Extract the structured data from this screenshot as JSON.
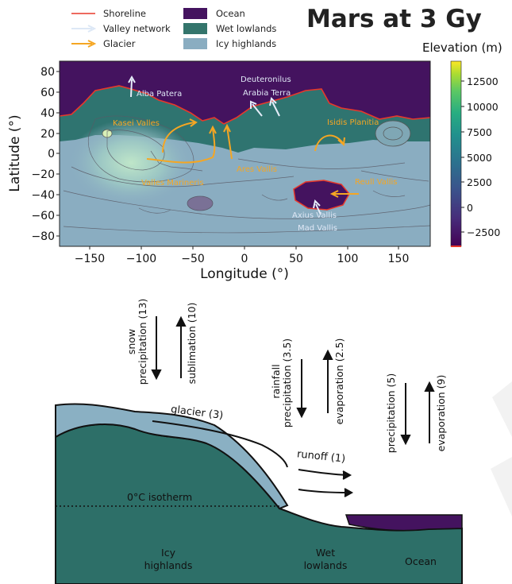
{
  "title": "Mars at 3 Gy",
  "legend": {
    "items": [
      {
        "label": "Shoreline",
        "kind": "line",
        "color": "#e8382a"
      },
      {
        "label": "Valley network",
        "kind": "arrow",
        "color": "#dde8f6"
      },
      {
        "label": "Glacier",
        "kind": "arrow",
        "color": "#f5a623"
      },
      {
        "label": "Ocean",
        "kind": "swatch",
        "color": "#44135f"
      },
      {
        "label": "Wet lowlands",
        "kind": "swatch",
        "color": "#34756c"
      },
      {
        "label": "Icy highlands",
        "kind": "swatch",
        "color": "#8aadc1"
      }
    ]
  },
  "map": {
    "xlabel": "Longitude (°)",
    "ylabel": "Latitude (°)",
    "xticks": [
      "−150",
      "−100",
      "−50",
      "0",
      "50",
      "100",
      "150"
    ],
    "yticks": [
      "80",
      "60",
      "40",
      "20",
      "0",
      "−20",
      "−40",
      "−60",
      "−80"
    ],
    "xlim": [
      -180,
      180
    ],
    "ylim": [
      -90,
      90
    ],
    "colorbar": {
      "title": "Elevation (m)",
      "ticks": [
        "12500",
        "10000",
        "7500",
        "5000",
        "2500",
        "0",
        "−2500"
      ],
      "range": [
        -4000,
        14500
      ]
    },
    "place_labels": [
      {
        "text": "Alba Patera",
        "color": "#dfe7f5"
      },
      {
        "text": "Deuteronilus",
        "color": "#dfe7f5"
      },
      {
        "text": "Arabia Terra",
        "color": "#dfe7f5"
      },
      {
        "text": "Kasei Valles",
        "color": "#f5a623"
      },
      {
        "text": "Isidis Planitia",
        "color": "#f5a623"
      },
      {
        "text": "Ares Vallis",
        "color": "#f5a623"
      },
      {
        "text": "Valles Marineris",
        "color": "#f5a623"
      },
      {
        "text": "Reull Vallis",
        "color": "#f5a623"
      },
      {
        "text": "Axius Vallis",
        "color": "#dfe7f5"
      },
      {
        "text": "Mad Vallis",
        "color": "#dfe7f5"
      }
    ]
  },
  "diagram": {
    "flux_labels": {
      "snow_line1": "snow",
      "snow_line2": "precipitation (13)",
      "sublimation": "sublimation (10)",
      "rain_line1": "rainfall",
      "rain_line2": "precipitation (3.5)",
      "evap_mid": "evaporation (2.5)",
      "precip_right": "precipitation (5)",
      "evap_right": "evaporation (9)"
    },
    "glacier": "glacier (3)",
    "runoff": "runoff (1)",
    "isotherm": "0°C isotherm",
    "regions": {
      "icy_line1": "Icy",
      "icy_line2": "highlands",
      "wet_line1": "Wet",
      "wet_line2": "lowlands",
      "ocean": "Ocean"
    },
    "colors": {
      "ground": "#2d6f68",
      "ice": "#8ab0c3",
      "ocean": "#44135f"
    }
  }
}
